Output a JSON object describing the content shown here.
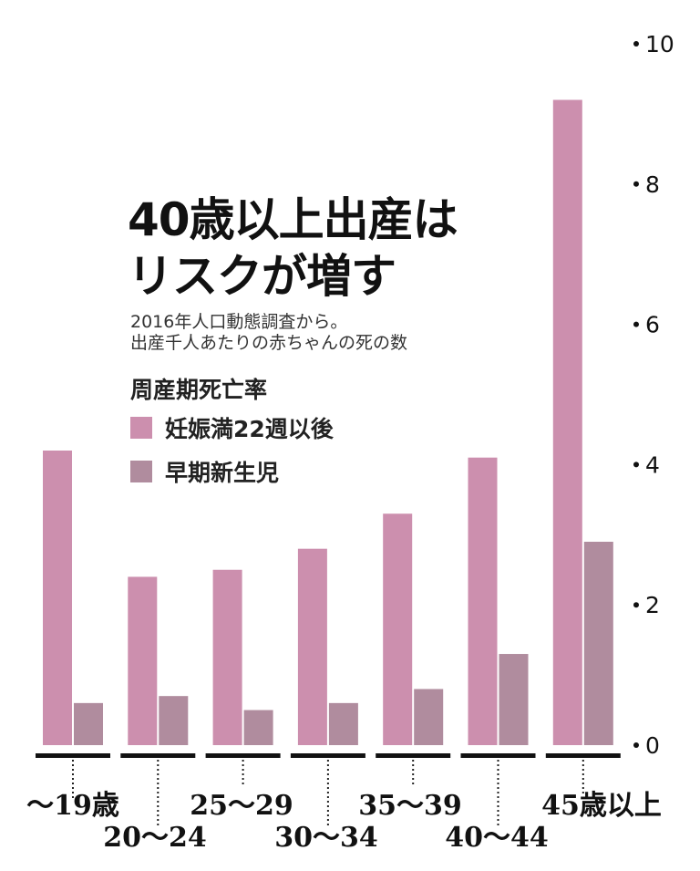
{
  "chart_data": {
    "type": "bar",
    "title_line1": "40歳以上出産は",
    "title_line2": "リスクが増す",
    "subtitle_line1": "2016年人口動態調査から。",
    "subtitle_line2": "出産千人あたりの赤ちゃんの死の数",
    "legend_title": "周産期死亡率",
    "categories": [
      "〜19歳",
      "20〜24",
      "25〜29",
      "30〜34",
      "35〜39",
      "40〜44",
      "45歳以上"
    ],
    "series": [
      {
        "name": "妊娠満22週以後",
        "color": "#cc8fae",
        "values": [
          4.2,
          2.4,
          2.5,
          2.8,
          3.3,
          4.1,
          9.2
        ]
      },
      {
        "name": "早期新生児",
        "color": "#b08c9e",
        "values": [
          0.6,
          0.7,
          0.5,
          0.6,
          0.8,
          1.3,
          2.9
        ]
      }
    ],
    "ylim": [
      0,
      10
    ],
    "yticks": [
      "10",
      "8",
      "6",
      "4",
      "2",
      "0"
    ],
    "ytick_values": [
      10,
      8,
      6,
      4,
      2,
      0
    ],
    "axis_position": "right",
    "grid": false
  }
}
